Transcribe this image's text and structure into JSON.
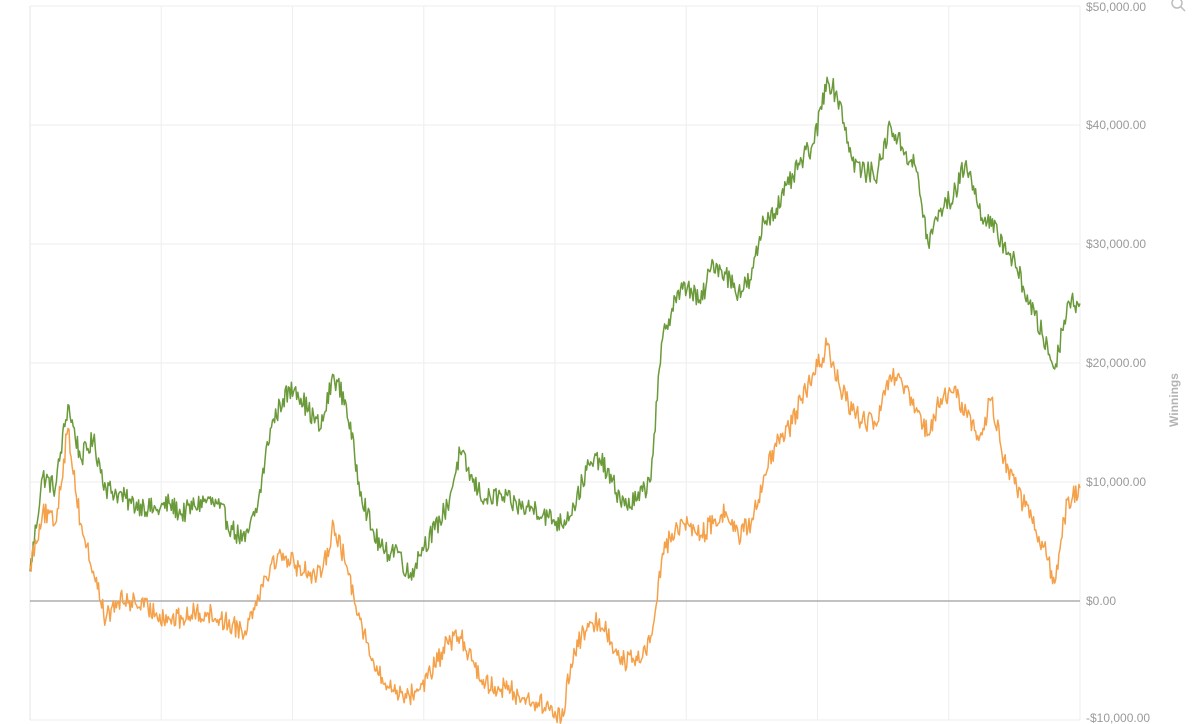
{
  "chart_data": {
    "type": "line",
    "title": "",
    "xlabel": "",
    "ylabel": "Winnings",
    "ylim": [
      -10000,
      50000
    ],
    "y_ticks": [
      {
        "value": 50000,
        "label": "$50,000.00"
      },
      {
        "value": 40000,
        "label": "$40,000.00"
      },
      {
        "value": 30000,
        "label": "$30,000.00"
      },
      {
        "value": 20000,
        "label": "$20,000.00"
      },
      {
        "value": 10000,
        "label": "$10,000.00"
      },
      {
        "value": 0,
        "label": "$0.00"
      },
      {
        "value": -10000,
        "label": "-$10,000.00"
      }
    ],
    "y_axis_position": "right",
    "grid": true,
    "zero_line": true,
    "x_gridlines": 8,
    "icons": [
      "zoom-icon"
    ],
    "series": [
      {
        "color": "#6a9a3a",
        "values": [
          2500,
          10500,
          9500,
          16500,
          12000,
          13500,
          9500,
          9000,
          8200,
          8000,
          7600,
          8200,
          7300,
          8000,
          8500,
          7800,
          6000,
          5000,
          8000,
          14500,
          17000,
          18000,
          16000,
          14500,
          19000,
          16500,
          10000,
          6000,
          4000,
          4500,
          2000,
          4500,
          6000,
          8000,
          12500,
          10000,
          8500,
          8800,
          8300,
          7800,
          7800,
          7000,
          6500,
          8000,
          11000,
          12000,
          10000,
          8000,
          8500,
          10000,
          22000,
          25500,
          26500,
          25000,
          28500,
          27500,
          26000,
          27000,
          32000,
          33000,
          35000,
          37000,
          38500,
          44000,
          42000,
          37000,
          36000,
          36000,
          40000,
          38000,
          36500,
          30000,
          33000,
          34000,
          37000,
          33000,
          31500,
          30000,
          28000,
          25000,
          22500,
          19500,
          25000,
          25000
        ]
      },
      {
        "color": "#f5a14a",
        "values": [
          3000,
          7500,
          6500,
          14500,
          6500,
          2500,
          -1500,
          0,
          0,
          -500,
          -1000,
          -1500,
          -1500,
          -1000,
          -1000,
          -1500,
          -2000,
          -2500,
          500,
          3000,
          4000,
          3000,
          2500,
          2000,
          6500,
          3000,
          -1000,
          -5000,
          -7000,
          -7500,
          -8000,
          -7000,
          -5500,
          -3500,
          -3000,
          -5000,
          -7000,
          -7200,
          -7500,
          -8200,
          -8500,
          -9000,
          -10000,
          -4000,
          -2500,
          -1500,
          -3500,
          -5000,
          -5000,
          -3500,
          4000,
          6000,
          6500,
          5500,
          6500,
          7500,
          5500,
          6500,
          10500,
          13000,
          14500,
          17000,
          19000,
          21500,
          18000,
          16000,
          15000,
          15000,
          19000,
          18000,
          16000,
          14000,
          17000,
          17500,
          16000,
          13500,
          17000,
          12000,
          9500,
          7000,
          5000,
          1500,
          8500,
          9500
        ]
      }
    ]
  }
}
